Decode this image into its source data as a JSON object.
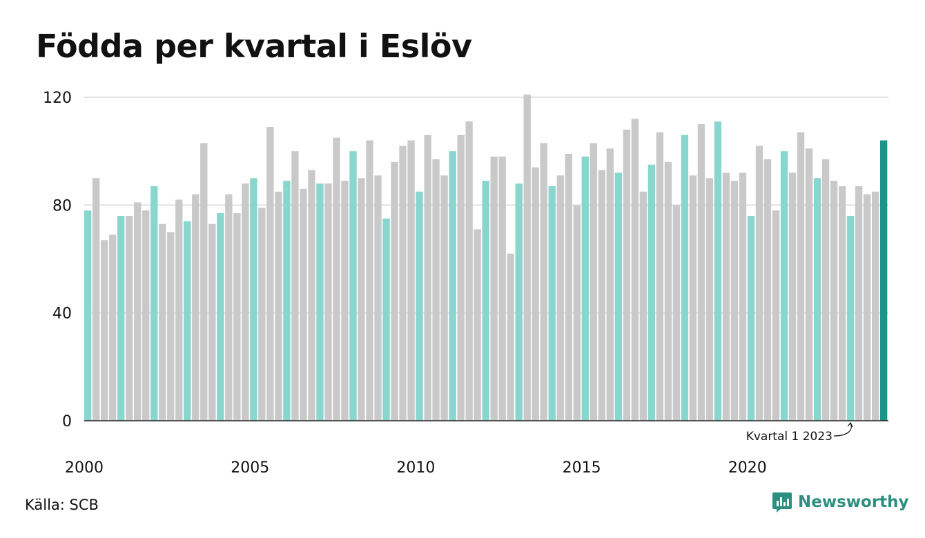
{
  "title": "Födda per kvartal i Eslöv",
  "source": "Källa: SCB",
  "brand": "Newsworthy",
  "colors": {
    "q1": "#88d6ce",
    "other": "#c9c9c9",
    "latest": "#1a9486",
    "brand": "#2d8f80"
  },
  "chart_data": {
    "type": "bar",
    "title": "Födda per kvartal i Eslöv",
    "xlabel": "",
    "ylabel": "",
    "ylim": [
      0,
      120
    ],
    "yticks": [
      0,
      40,
      80,
      120
    ],
    "xtick_labels": [
      "2000",
      "2005",
      "2010",
      "2015",
      "2020"
    ],
    "grid": true,
    "note": "Q1 bars highlighted in teal; latest bar in dark teal",
    "annotation": "Kvartal 1 2023",
    "start_year": 2000,
    "values": [
      78,
      90,
      67,
      69,
      76,
      76,
      81,
      78,
      87,
      73,
      70,
      82,
      74,
      84,
      103,
      73,
      77,
      84,
      77,
      88,
      90,
      79,
      109,
      85,
      89,
      100,
      86,
      93,
      88,
      88,
      105,
      89,
      100,
      90,
      104,
      91,
      75,
      96,
      102,
      104,
      85,
      106,
      97,
      91,
      100,
      106,
      111,
      71,
      89,
      98,
      98,
      62,
      88,
      121,
      94,
      103,
      87,
      91,
      99,
      80,
      98,
      103,
      93,
      101,
      92,
      108,
      112,
      85,
      95,
      107,
      96,
      80,
      106,
      91,
      110,
      90,
      111,
      92,
      89,
      92,
      76,
      102,
      97,
      78,
      100,
      92,
      107,
      101,
      90,
      97,
      89,
      87,
      76,
      87,
      84,
      85,
      104
    ]
  }
}
